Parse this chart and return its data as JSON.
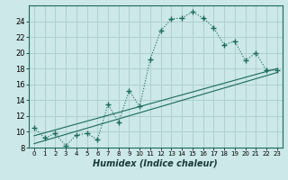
{
  "xlabel": "Humidex (Indice chaleur)",
  "bg_color": "#cce8e8",
  "grid_color": "#b0d0d0",
  "line_color": "#1a6a5a",
  "xlim": [
    -0.5,
    23.5
  ],
  "ylim": [
    8,
    26
  ],
  "xticks": [
    0,
    1,
    2,
    3,
    4,
    5,
    6,
    7,
    8,
    9,
    10,
    11,
    12,
    13,
    14,
    15,
    16,
    17,
    18,
    19,
    20,
    21,
    22,
    23
  ],
  "yticks": [
    8,
    10,
    12,
    14,
    16,
    18,
    20,
    22,
    24
  ],
  "curve1_x": [
    0,
    1,
    2,
    3,
    4,
    5,
    6,
    7,
    8,
    9,
    10,
    11,
    12,
    13,
    14,
    15,
    16,
    17,
    18,
    19,
    20,
    21,
    22,
    23
  ],
  "curve1_y": [
    10.5,
    9.2,
    9.8,
    8.2,
    9.6,
    9.8,
    9.0,
    13.5,
    11.2,
    15.2,
    13.2,
    19.2,
    22.8,
    24.3,
    24.4,
    25.2,
    24.4,
    23.2,
    21.0,
    21.5,
    19.0,
    20.0,
    17.8,
    17.8
  ],
  "ref_line1_x": [
    0,
    23
  ],
  "ref_line1_y": [
    9.5,
    18.0
  ],
  "ref_line2_x": [
    0,
    23
  ],
  "ref_line2_y": [
    8.5,
    17.5
  ]
}
